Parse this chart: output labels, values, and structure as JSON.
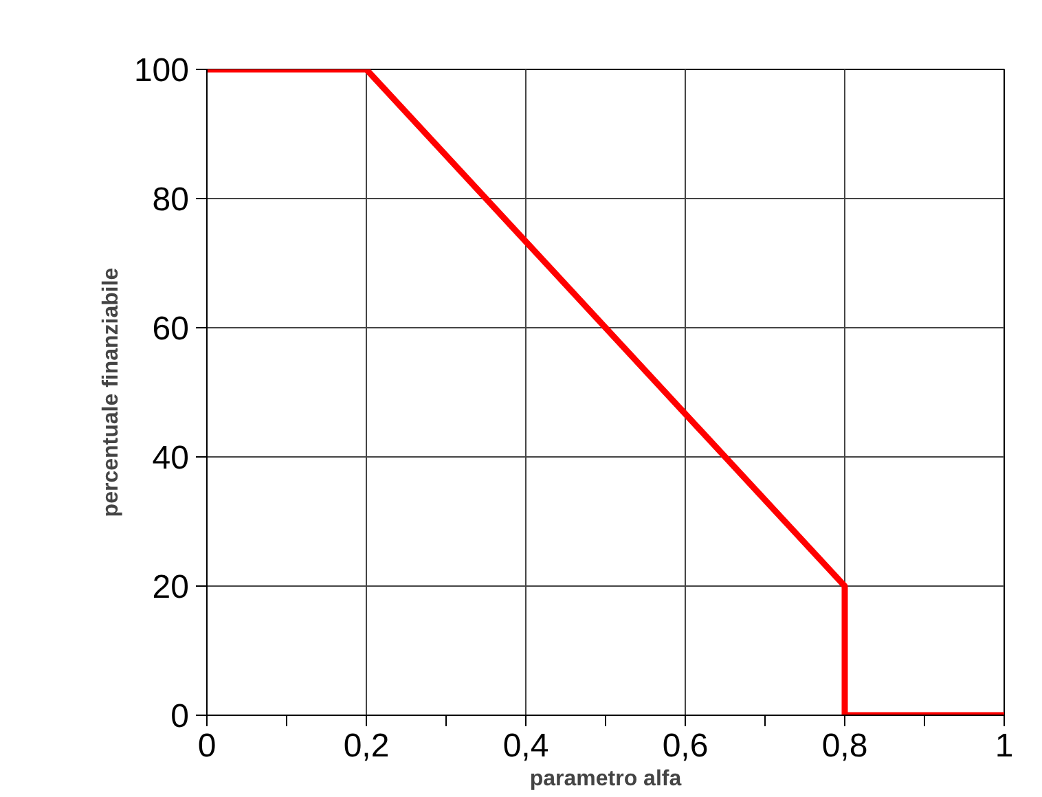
{
  "chart_data": {
    "type": "line",
    "xlabel": "parametro alfa",
    "ylabel": "percentuale finanziabile",
    "x": [
      0,
      0.2,
      0.8,
      0.8,
      1
    ],
    "series": [
      {
        "color": "#ff0000",
        "values": [
          100,
          100,
          20,
          0,
          0
        ]
      }
    ],
    "xlim": [
      0,
      1
    ],
    "ylim": [
      0,
      100
    ],
    "xticks": [
      0,
      {
        "value": 0.1,
        "label": null
      },
      {
        "value": 0.2,
        "label": "0,2"
      },
      {
        "value": 0.3,
        "label": null
      },
      {
        "value": 0.4,
        "label": "0,4"
      },
      {
        "value": 0.5,
        "label": null
      },
      {
        "value": 0.6,
        "label": "0,6"
      },
      {
        "value": 0.7,
        "label": null
      },
      {
        "value": 0.8,
        "label": "0,8"
      },
      {
        "value": 0.9,
        "label": null
      },
      1
    ],
    "yticks": [
      0,
      20,
      40,
      60,
      80,
      100
    ],
    "grid": true,
    "marker": "none",
    "line_style": "solid"
  }
}
